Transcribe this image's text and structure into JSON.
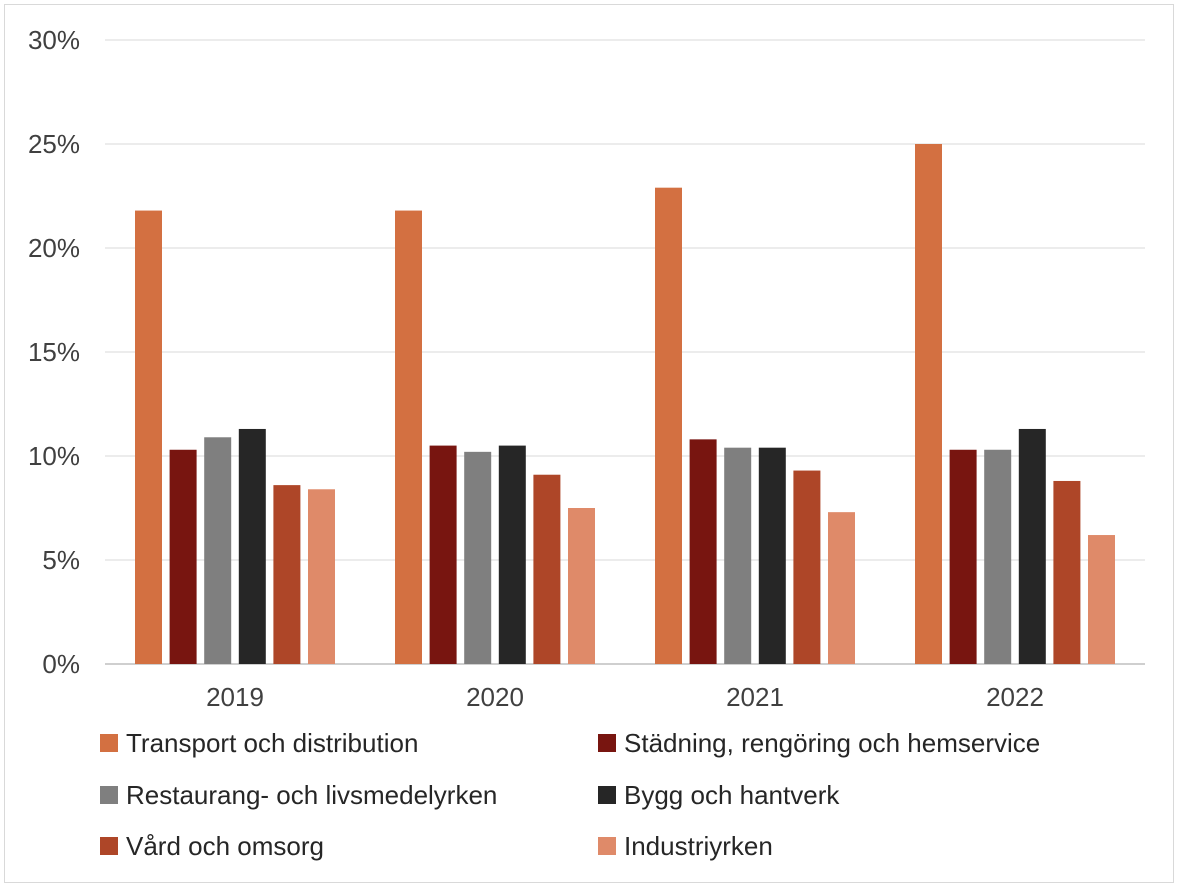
{
  "chart_data": {
    "type": "bar",
    "categories": [
      "2019",
      "2020",
      "2021",
      "2022"
    ],
    "series": [
      {
        "name": "Transport och distribution",
        "color": "#d37041",
        "values": [
          21.8,
          21.8,
          22.9,
          25.0
        ]
      },
      {
        "name": "Städning, rengöring och hemservice",
        "color": "#781510",
        "values": [
          10.3,
          10.5,
          10.8,
          10.3
        ]
      },
      {
        "name": "Restaurang- och livsmedelyrken",
        "color": "#7f7f7f",
        "values": [
          10.9,
          10.2,
          10.4,
          10.3
        ]
      },
      {
        "name": "Bygg och hantverk",
        "color": "#262626",
        "values": [
          11.3,
          10.5,
          10.4,
          11.3
        ]
      },
      {
        "name": "Vård och omsorg",
        "color": "#ae4628",
        "values": [
          8.6,
          9.1,
          9.3,
          8.8
        ]
      },
      {
        "name": "Industriyrken",
        "color": "#df8a69",
        "values": [
          8.4,
          7.5,
          7.3,
          6.2
        ]
      }
    ],
    "ylim": [
      0,
      30
    ],
    "yticks": [
      "0%",
      "5%",
      "10%",
      "15%",
      "20%",
      "25%",
      "30%"
    ],
    "grid": true,
    "legend_position": "bottom",
    "title": "",
    "xlabel": "",
    "ylabel": ""
  }
}
